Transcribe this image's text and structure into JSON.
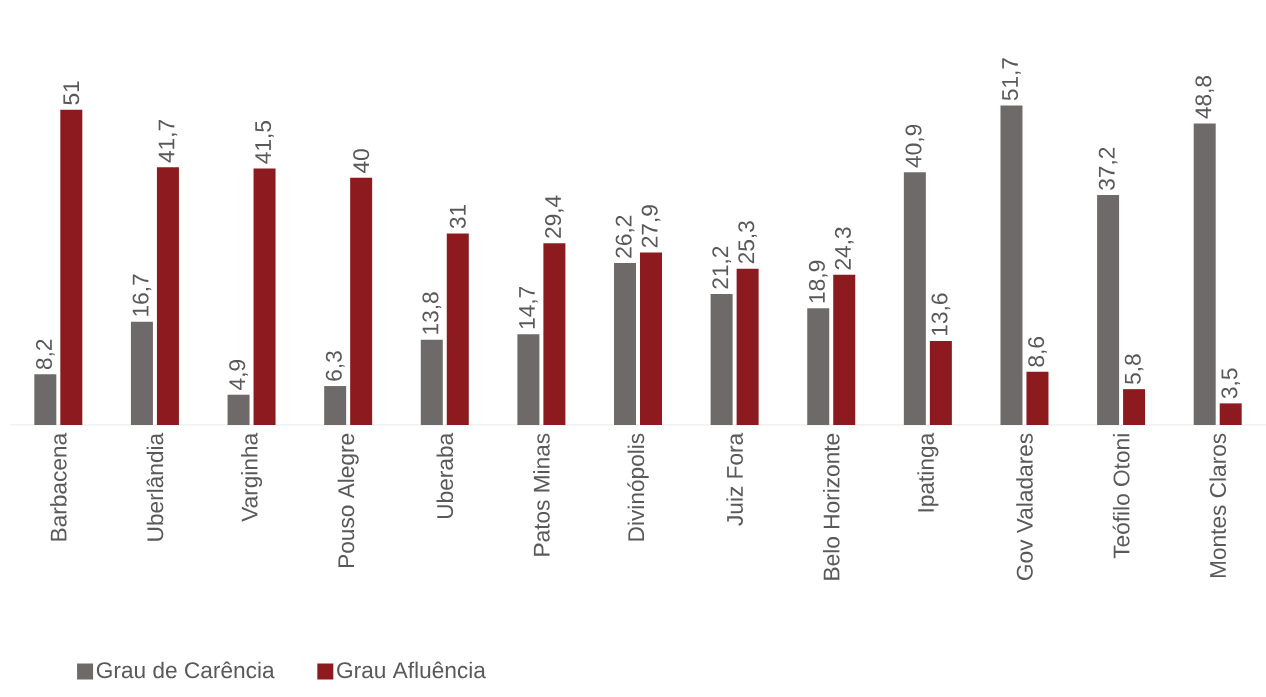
{
  "chart_data": {
    "type": "bar",
    "categories": [
      "Barbacena",
      "Uberlândia",
      "Varginha",
      "Pouso Alegre",
      "Uberaba",
      "Patos Minas",
      "Divinópolis",
      "Juiz Fora",
      "Belo Horizonte",
      "Ipatinga",
      "Gov Valadares",
      "Teófilo Otoni",
      "Montes Claros"
    ],
    "series": [
      {
        "name": "Grau de Carência",
        "color": "#6e6a6a",
        "values": [
          8.2,
          16.7,
          4.9,
          6.3,
          13.8,
          14.7,
          26.2,
          21.2,
          18.9,
          40.9,
          51.7,
          37.2,
          48.8
        ],
        "value_labels": [
          "8,2",
          "16,7",
          "4,9",
          "6,3",
          "13,8",
          "14,7",
          "26,2",
          "21,2",
          "18,9",
          "40,9",
          "51,7",
          "37,2",
          "48,8"
        ]
      },
      {
        "name": "Grau Afluência",
        "color": "#8c1a1f",
        "values": [
          51,
          41.7,
          41.5,
          40,
          31,
          29.4,
          27.9,
          25.3,
          24.3,
          13.6,
          8.6,
          5.8,
          3.5
        ],
        "value_labels": [
          "51",
          "41,7",
          "41,5",
          "40",
          "31",
          "29,4",
          "27,9",
          "25,3",
          "24,3",
          "13,6",
          "8,6",
          "5,8",
          "3,5"
        ]
      }
    ],
    "legend": "bottom left",
    "grid": false
  }
}
